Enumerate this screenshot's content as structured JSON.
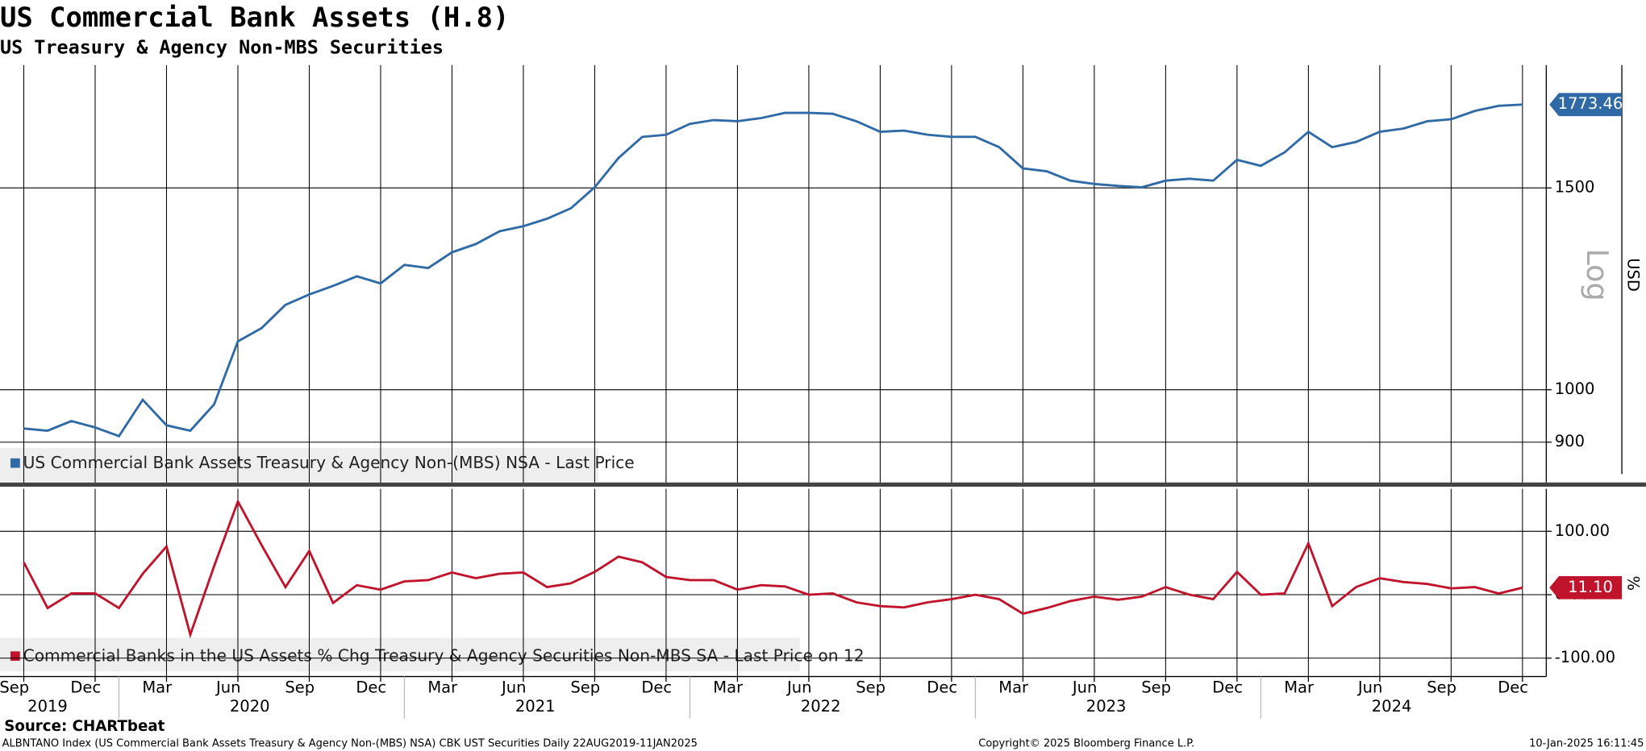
{
  "chart_data": [
    {
      "type": "line",
      "title": "US Commercial Bank Assets (H.8)",
      "subtitle": "US Treasury & Agency Non-MBS Securities",
      "x": [
        "2019-09",
        "2019-10",
        "2019-11",
        "2019-12",
        "2020-01",
        "2020-02",
        "2020-03",
        "2020-04",
        "2020-05",
        "2020-06",
        "2020-07",
        "2020-08",
        "2020-09",
        "2020-10",
        "2020-11",
        "2020-12",
        "2021-01",
        "2021-02",
        "2021-03",
        "2021-04",
        "2021-05",
        "2021-06",
        "2021-07",
        "2021-08",
        "2021-09",
        "2021-10",
        "2021-11",
        "2021-12",
        "2022-01",
        "2022-02",
        "2022-03",
        "2022-04",
        "2022-05",
        "2022-06",
        "2022-07",
        "2022-08",
        "2022-09",
        "2022-10",
        "2022-11",
        "2022-12",
        "2023-01",
        "2023-02",
        "2023-03",
        "2023-04",
        "2023-05",
        "2023-06",
        "2023-07",
        "2023-08",
        "2023-09",
        "2023-10",
        "2023-11",
        "2023-12",
        "2024-01",
        "2024-02",
        "2024-03",
        "2024-04",
        "2024-05",
        "2024-06",
        "2024-07",
        "2024-08",
        "2024-09",
        "2024-10",
        "2024-11",
        "2024-12"
      ],
      "series": [
        {
          "name": "US Commercial Bank Assets Treasury & Agency Non-(MBS) NSA - Last Price",
          "color": "#2f6aa6",
          "values": [
            925,
            921,
            939,
            927,
            911,
            980,
            931,
            921,
            971,
            1102,
            1132,
            1186,
            1211,
            1232,
            1256,
            1238,
            1285,
            1277,
            1318,
            1340,
            1375,
            1389,
            1410,
            1440,
            1502,
            1593,
            1662,
            1669,
            1706,
            1719,
            1715,
            1726,
            1744,
            1744,
            1741,
            1715,
            1679,
            1683,
            1669,
            1662,
            1662,
            1628,
            1560,
            1551,
            1522,
            1512,
            1506,
            1502,
            1522,
            1528,
            1522,
            1587,
            1568,
            1611,
            1679,
            1628,
            1645,
            1679,
            1690,
            1715,
            1722,
            1751,
            1769,
            1773.46
          ]
        }
      ],
      "xlim": [
        "2019-08",
        "2025-01"
      ],
      "ylim": [
        830,
        1920
      ],
      "yticks": [
        900,
        1000,
        1500
      ],
      "log_scale": true,
      "scale_label": "Log",
      "y_label": "USD",
      "grid": true
    },
    {
      "type": "line",
      "x": [
        "2019-09",
        "2019-10",
        "2019-11",
        "2019-12",
        "2020-01",
        "2020-02",
        "2020-03",
        "2020-04",
        "2020-05",
        "2020-06",
        "2020-07",
        "2020-08",
        "2020-09",
        "2020-10",
        "2020-11",
        "2020-12",
        "2021-01",
        "2021-02",
        "2021-03",
        "2021-04",
        "2021-05",
        "2021-06",
        "2021-07",
        "2021-08",
        "2021-09",
        "2021-10",
        "2021-11",
        "2021-12",
        "2022-01",
        "2022-02",
        "2022-03",
        "2022-04",
        "2022-05",
        "2022-06",
        "2022-07",
        "2022-08",
        "2022-09",
        "2022-10",
        "2022-11",
        "2022-12",
        "2023-01",
        "2023-02",
        "2023-03",
        "2023-04",
        "2023-05",
        "2023-06",
        "2023-07",
        "2023-08",
        "2023-09",
        "2023-10",
        "2023-11",
        "2023-12",
        "2024-01",
        "2024-02",
        "2024-03",
        "2024-04",
        "2024-05",
        "2024-06",
        "2024-07",
        "2024-08",
        "2024-09",
        "2024-10",
        "2024-11",
        "2024-12"
      ],
      "series": [
        {
          "name": "Commercial Banks in the US Assets % Chg Treasury & Agency Securities Non-MBS SA - Last Price on 12",
          "color": "#c0142c",
          "values": [
            51,
            -21,
            2,
            2,
            -21,
            33,
            76,
            -63,
            45,
            147,
            78,
            12,
            69,
            -13,
            15,
            8,
            21,
            23,
            35,
            26,
            33,
            35,
            12,
            18,
            36,
            60,
            51,
            28,
            23,
            23,
            8,
            15,
            13,
            0,
            2,
            -12,
            -18,
            -20,
            -12,
            -7,
            0,
            -7,
            -30,
            -21,
            -10,
            -3,
            -8,
            -3,
            12,
            0,
            -7,
            36,
            0,
            2,
            81,
            -18,
            12,
            26,
            20,
            17,
            10,
            12,
            2,
            11.1
          ],
          "last_value_label": "11.10"
        }
      ],
      "xlim": [
        "2019-08",
        "2025-01"
      ],
      "ylim": [
        -129,
        167
      ],
      "yticks": [
        {
          "value": -100,
          "label": "-100.00"
        },
        {
          "value": 0,
          "label": "0.00"
        },
        {
          "value": 100,
          "label": "100.00"
        }
      ],
      "y_label": "%",
      "grid": true,
      "xticks": [
        {
          "value": "2019-09",
          "label": "Sep"
        },
        {
          "value": "2019-12",
          "label": "Dec"
        },
        {
          "value": "2020-03",
          "label": "Mar"
        },
        {
          "value": "2020-06",
          "label": "Jun"
        },
        {
          "value": "2020-09",
          "label": "Sep"
        },
        {
          "value": "2020-12",
          "label": "Dec"
        },
        {
          "value": "2021-03",
          "label": "Mar"
        },
        {
          "value": "2021-06",
          "label": "Jun"
        },
        {
          "value": "2021-09",
          "label": "Sep"
        },
        {
          "value": "2021-12",
          "label": "Dec"
        },
        {
          "value": "2022-03",
          "label": "Mar"
        },
        {
          "value": "2022-06",
          "label": "Jun"
        },
        {
          "value": "2022-09",
          "label": "Sep"
        },
        {
          "value": "2022-12",
          "label": "Dec"
        },
        {
          "value": "2023-03",
          "label": "Mar"
        },
        {
          "value": "2023-06",
          "label": "Jun"
        },
        {
          "value": "2023-09",
          "label": "Sep"
        },
        {
          "value": "2023-12",
          "label": "Dec"
        },
        {
          "value": "2024-03",
          "label": "Mar"
        },
        {
          "value": "2024-06",
          "label": "Jun"
        },
        {
          "value": "2024-09",
          "label": "Sep"
        },
        {
          "value": "2024-12",
          "label": "Dec"
        }
      ],
      "year_labels": [
        "2019",
        "2020",
        "2021",
        "2022",
        "2023",
        "2024"
      ]
    }
  ],
  "source": "Source: CHARTbeat",
  "footer": {
    "left": "ALBNTANO Index (US Commercial Bank Assets Treasury & Agency Non-(MBS) NSA) CBK UST Securities  Daily 22AUG2019-11JAN2025",
    "center": "Copyright© 2025 Bloomberg Finance L.P.",
    "right": "10-Jan-2025 16:11:45"
  }
}
